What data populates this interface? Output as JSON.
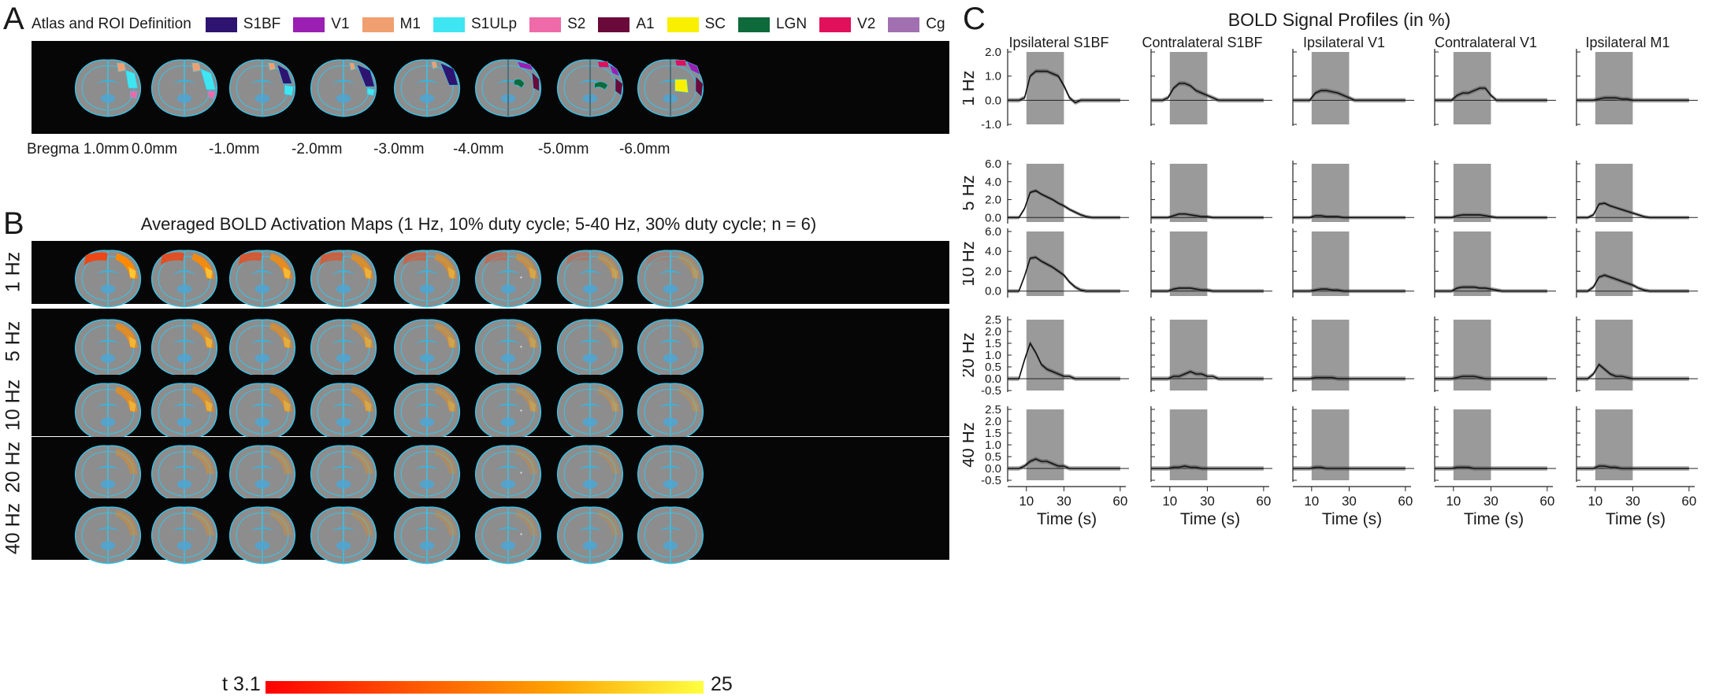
{
  "panels": {
    "a": "A",
    "b": "B",
    "c": "C"
  },
  "atlas": {
    "title": "Atlas and ROI Definition",
    "rois": [
      {
        "name": "S1BF",
        "color": "#2e1470"
      },
      {
        "name": "V1",
        "color": "#9a1fb2"
      },
      {
        "name": "M1",
        "color": "#f0a070"
      },
      {
        "name": "S1ULp",
        "color": "#3ee6f2"
      },
      {
        "name": "S2",
        "color": "#ee6aa8"
      },
      {
        "name": "A1",
        "color": "#6a0a3a"
      },
      {
        "name": "SC",
        "color": "#f8f000"
      },
      {
        "name": "LGN",
        "color": "#0e6a3a"
      },
      {
        "name": "V2",
        "color": "#e0105a"
      },
      {
        "name": "Cg",
        "color": "#a070b0"
      }
    ],
    "bregma_labels": [
      "Bregma 1.0mm",
      "0.0mm",
      "-1.0mm",
      "-2.0mm",
      "-3.0mm",
      "-4.0mm",
      "-5.0mm",
      "-6.0mm"
    ]
  },
  "activation": {
    "title": "Averaged BOLD Activation Maps (1 Hz, 10% duty cycle; 5-40 Hz, 30% duty cycle; n = 6)",
    "rows": [
      "1 Hz",
      "5 Hz",
      "10 Hz",
      "20 Hz",
      "40 Hz"
    ],
    "row_strength": [
      0.85,
      0.6,
      0.55,
      0.25,
      0.2
    ],
    "colorbar": {
      "label": "t",
      "min": "3.1",
      "max": "25"
    }
  },
  "chart_data": {
    "type": "line",
    "title": "BOLD Signal Profiles (in %)",
    "columns": [
      "Ipsilateral S1BF",
      "Contralateral S1BF",
      "Ipsilateral V1",
      "Contralateral V1",
      "Ipsilateral M1"
    ],
    "rows": [
      "1 Hz",
      "5 Hz",
      "10 Hz",
      "20 Hz",
      "40 Hz"
    ],
    "xlabel": "Time (s)",
    "x_ticks": [
      10,
      30,
      60
    ],
    "xlim": [
      0,
      63
    ],
    "stimulus_window_s": [
      10,
      30
    ],
    "row_yticks": [
      [
        "2.0",
        "1.0",
        "0.0",
        "-1.0"
      ],
      [
        "6.0",
        "4.0",
        "2.0",
        "0.0"
      ],
      [
        "6.0",
        "4.0",
        "2.0",
        "0.0"
      ],
      [
        "2.5",
        "2.0",
        "1.5",
        "1.0",
        "0.5",
        "0.0",
        "-0.5"
      ],
      [
        "2.5",
        "2.0",
        "1.5",
        "1.0",
        "0.5",
        "0.0",
        "-0.5"
      ]
    ],
    "row_ylim": [
      [
        -1,
        2
      ],
      [
        -0.5,
        6
      ],
      [
        -0.5,
        6
      ],
      [
        -0.5,
        2.5
      ],
      [
        -0.5,
        2.5
      ]
    ],
    "time_s": [
      0,
      3,
      6,
      9,
      12,
      15,
      18,
      21,
      24,
      27,
      30,
      33,
      36,
      39,
      42,
      45,
      48,
      51,
      54,
      57,
      60
    ],
    "series": [
      [
        {
          "column": "Ipsilateral S1BF",
          "row": "1 Hz",
          "values": [
            0,
            0,
            0,
            0.1,
            1.0,
            1.2,
            1.2,
            1.2,
            1.1,
            1.0,
            0.6,
            0.1,
            -0.1,
            0,
            0,
            0,
            0,
            0,
            0,
            0,
            0
          ]
        },
        {
          "column": "Contralateral S1BF",
          "row": "1 Hz",
          "values": [
            0,
            0,
            0,
            0.1,
            0.5,
            0.7,
            0.7,
            0.6,
            0.4,
            0.3,
            0.2,
            0.1,
            0,
            0,
            0,
            0,
            0,
            0,
            0,
            0,
            0
          ]
        },
        {
          "column": "Ipsilateral V1",
          "row": "1 Hz",
          "values": [
            0,
            0,
            0,
            0,
            0.3,
            0.4,
            0.4,
            0.35,
            0.3,
            0.2,
            0.1,
            0,
            0,
            0,
            0,
            0,
            0,
            0,
            0,
            0,
            0
          ]
        },
        {
          "column": "Contralateral V1",
          "row": "1 Hz",
          "values": [
            0,
            0,
            0,
            0,
            0.2,
            0.3,
            0.3,
            0.4,
            0.5,
            0.5,
            0.2,
            0,
            0,
            0,
            0,
            0,
            0,
            0,
            0,
            0,
            0
          ]
        },
        {
          "column": "Ipsilateral M1",
          "row": "1 Hz",
          "values": [
            0,
            0,
            0,
            0,
            0.05,
            0.1,
            0.1,
            0.1,
            0.05,
            0.05,
            0,
            0,
            0,
            0,
            0,
            0,
            0,
            0,
            0,
            0,
            0
          ]
        }
      ],
      [
        {
          "column": "Ipsilateral S1BF",
          "row": "5 Hz",
          "values": [
            0,
            0,
            0,
            1.0,
            2.8,
            3.0,
            2.6,
            2.3,
            2.0,
            1.6,
            1.3,
            0.9,
            0.6,
            0.3,
            0.1,
            0,
            0,
            0,
            0,
            0,
            0
          ]
        },
        {
          "column": "Contralateral S1BF",
          "row": "5 Hz",
          "values": [
            0,
            0,
            0,
            0,
            0.2,
            0.4,
            0.4,
            0.3,
            0.2,
            0.1,
            0.1,
            0,
            0,
            0,
            0,
            0,
            0,
            0,
            0,
            0,
            0
          ]
        },
        {
          "column": "Ipsilateral V1",
          "row": "5 Hz",
          "values": [
            0,
            0,
            0,
            0,
            0.2,
            0.2,
            0.1,
            0.1,
            0.1,
            0,
            0,
            0,
            0,
            0,
            0,
            0,
            0,
            0,
            0,
            0,
            0
          ]
        },
        {
          "column": "Contralateral V1",
          "row": "5 Hz",
          "values": [
            0,
            0,
            0,
            0,
            0.2,
            0.3,
            0.3,
            0.3,
            0.3,
            0.2,
            0.1,
            0,
            0,
            0,
            0,
            0,
            0,
            0,
            0,
            0,
            0
          ]
        },
        {
          "column": "Ipsilateral M1",
          "row": "5 Hz",
          "values": [
            0,
            0,
            0,
            0.3,
            1.5,
            1.6,
            1.3,
            1.1,
            0.9,
            0.7,
            0.5,
            0.3,
            0.1,
            0,
            0,
            0,
            0,
            0,
            0,
            0,
            0
          ]
        }
      ],
      [
        {
          "column": "Ipsilateral S1BF",
          "row": "10 Hz",
          "values": [
            0,
            0,
            0,
            1.5,
            3.3,
            3.4,
            3.0,
            2.7,
            2.4,
            2.0,
            1.6,
            0.9,
            0.4,
            0.1,
            0,
            0,
            0,
            0,
            0,
            0,
            0
          ]
        },
        {
          "column": "Contralateral S1BF",
          "row": "10 Hz",
          "values": [
            0,
            0,
            0,
            0,
            0.2,
            0.3,
            0.3,
            0.3,
            0.2,
            0.1,
            0.1,
            0,
            0,
            0,
            0,
            0,
            0,
            0,
            0,
            0,
            0
          ]
        },
        {
          "column": "Ipsilateral V1",
          "row": "10 Hz",
          "values": [
            0,
            0,
            0,
            0,
            0.1,
            0.2,
            0.2,
            0.1,
            0.1,
            0,
            0,
            0,
            0,
            0,
            0,
            0,
            0,
            0,
            0,
            0,
            0
          ]
        },
        {
          "column": "Contralateral V1",
          "row": "10 Hz",
          "values": [
            0,
            0,
            0,
            0,
            0.3,
            0.4,
            0.4,
            0.4,
            0.3,
            0.3,
            0.2,
            0.1,
            0,
            0,
            0,
            0,
            0,
            0,
            0,
            0,
            0
          ]
        },
        {
          "column": "Ipsilateral M1",
          "row": "10 Hz",
          "values": [
            0,
            0,
            0,
            0.4,
            1.4,
            1.6,
            1.4,
            1.2,
            1.0,
            0.8,
            0.6,
            0.3,
            0.1,
            0,
            0,
            0,
            0,
            0,
            0,
            0,
            0
          ]
        }
      ],
      [
        {
          "column": "Ipsilateral S1BF",
          "row": "20 Hz",
          "values": [
            0,
            0,
            0,
            0.8,
            1.5,
            1.1,
            0.6,
            0.4,
            0.3,
            0.2,
            0.1,
            0.1,
            0,
            0,
            0,
            0,
            0,
            0,
            0,
            0,
            0
          ]
        },
        {
          "column": "Contralateral S1BF",
          "row": "20 Hz",
          "values": [
            0,
            0,
            0,
            0,
            0.1,
            0.1,
            0.2,
            0.3,
            0.2,
            0.2,
            0.1,
            0.1,
            0,
            0,
            0,
            0,
            0,
            0,
            0,
            0,
            0
          ]
        },
        {
          "column": "Ipsilateral V1",
          "row": "20 Hz",
          "values": [
            0,
            0,
            0,
            0,
            0.05,
            0.05,
            0.05,
            0.05,
            0,
            0,
            0,
            0,
            0,
            0,
            0,
            0,
            0,
            0,
            0,
            0,
            0
          ]
        },
        {
          "column": "Contralateral V1",
          "row": "20 Hz",
          "values": [
            0,
            0,
            0,
            0,
            0.05,
            0.1,
            0.1,
            0.1,
            0.05,
            0,
            0,
            0,
            0,
            0,
            0,
            0,
            0,
            0,
            0,
            0,
            0
          ]
        },
        {
          "column": "Ipsilateral M1",
          "row": "20 Hz",
          "values": [
            0,
            0,
            0,
            0.2,
            0.6,
            0.4,
            0.2,
            0.1,
            0.1,
            0.05,
            0,
            0,
            0,
            0,
            0,
            0,
            0,
            0,
            0,
            0,
            0
          ]
        }
      ],
      [
        {
          "column": "Ipsilateral S1BF",
          "row": "40 Hz",
          "values": [
            0,
            0,
            0,
            0.1,
            0.3,
            0.4,
            0.3,
            0.3,
            0.2,
            0.1,
            0.1,
            0,
            0,
            0,
            0,
            0,
            0,
            0,
            0,
            0,
            0
          ]
        },
        {
          "column": "Contralateral S1BF",
          "row": "40 Hz",
          "values": [
            0,
            0,
            0,
            0,
            0.05,
            0.05,
            0.1,
            0.05,
            0.05,
            0,
            0,
            0,
            0,
            0,
            0,
            0,
            0,
            0,
            0,
            0,
            0
          ]
        },
        {
          "column": "Ipsilateral V1",
          "row": "40 Hz",
          "values": [
            0,
            0,
            0,
            0,
            0.05,
            0.05,
            0,
            0,
            0,
            0,
            0,
            0,
            0,
            0,
            0,
            0,
            0,
            0,
            0,
            0,
            0
          ]
        },
        {
          "column": "Contralateral V1",
          "row": "40 Hz",
          "values": [
            0,
            0,
            0,
            0,
            0.05,
            0.05,
            0.05,
            0,
            0,
            0,
            0,
            0,
            0,
            0,
            0,
            0,
            0,
            0,
            0,
            0,
            0
          ]
        },
        {
          "column": "Ipsilateral M1",
          "row": "40 Hz",
          "values": [
            0,
            0,
            0,
            0,
            0.1,
            0.1,
            0.05,
            0.05,
            0,
            0,
            0,
            0,
            0,
            0,
            0,
            0,
            0,
            0,
            0,
            0,
            0
          ]
        }
      ]
    ]
  }
}
